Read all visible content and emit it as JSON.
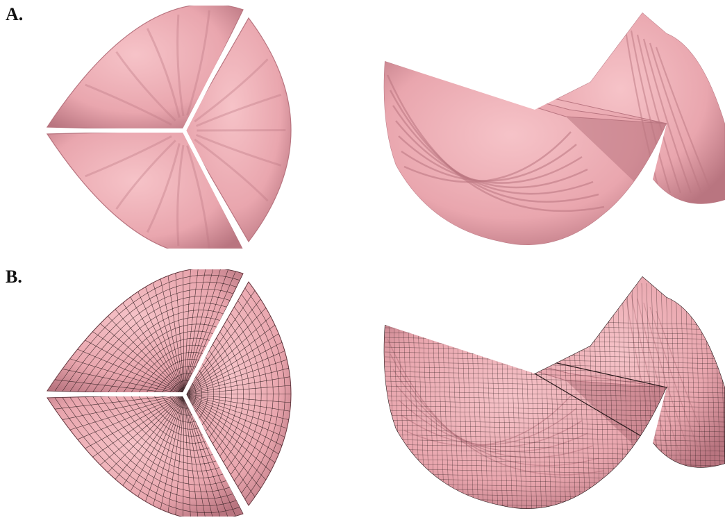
{
  "panels": [
    {
      "label": "A.",
      "render_style": "smooth-shaded"
    },
    {
      "label": "B.",
      "render_style": "wireframe-mesh"
    }
  ],
  "colors": {
    "leaflet_fill": "#e9a6ae",
    "leaflet_highlight": "#f6c3c8",
    "leaflet_shadow": "#b97580",
    "mesh_line": "#2a1a1c",
    "commissure_gap": "#ffffff"
  }
}
